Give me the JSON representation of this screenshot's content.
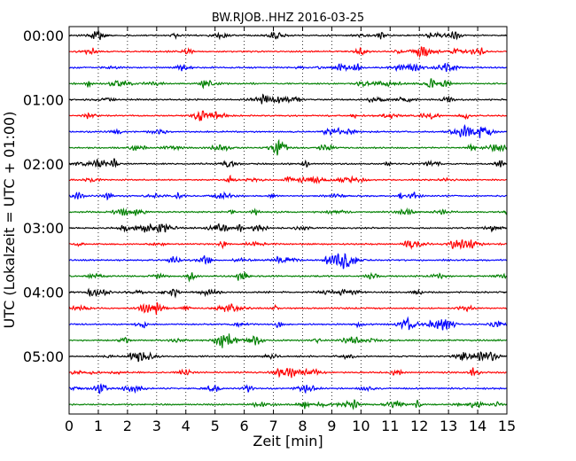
{
  "chart_data": {
    "type": "line",
    "title": "BW.RJOB..HHZ 2016-03-25",
    "xlabel": "Zeit  [min]",
    "ylabel": "UTC (Lokalzeit = UTC + 01:00)",
    "xlim": [
      0,
      15
    ],
    "xticks": [
      0,
      1,
      2,
      3,
      4,
      5,
      6,
      7,
      8,
      9,
      10,
      11,
      12,
      13,
      14,
      15
    ],
    "ytick_labels": [
      "00:00",
      "01:00",
      "02:00",
      "03:00",
      "04:00",
      "05:00"
    ],
    "ytick_trace_index": [
      0,
      4,
      8,
      12,
      16,
      20
    ],
    "grid": "vertical-dotted",
    "trace_count": 24,
    "trace_interval_minutes": 15,
    "trace_colors": [
      "#000000",
      "#ff0000",
      "#0000ff",
      "#008000"
    ],
    "series": [
      {
        "start": "00:00"
      },
      {
        "start": "00:15"
      },
      {
        "start": "00:30"
      },
      {
        "start": "00:45"
      },
      {
        "start": "01:00"
      },
      {
        "start": "01:15"
      },
      {
        "start": "01:30"
      },
      {
        "start": "01:45"
      },
      {
        "start": "02:00"
      },
      {
        "start": "02:15"
      },
      {
        "start": "02:30"
      },
      {
        "start": "02:45"
      },
      {
        "start": "03:00"
      },
      {
        "start": "03:15"
      },
      {
        "start": "03:30"
      },
      {
        "start": "03:45"
      },
      {
        "start": "04:00"
      },
      {
        "start": "04:15"
      },
      {
        "start": "04:30"
      },
      {
        "start": "04:45"
      },
      {
        "start": "05:00"
      },
      {
        "start": "05:15"
      },
      {
        "start": "05:30"
      },
      {
        "start": "05:45"
      }
    ]
  }
}
